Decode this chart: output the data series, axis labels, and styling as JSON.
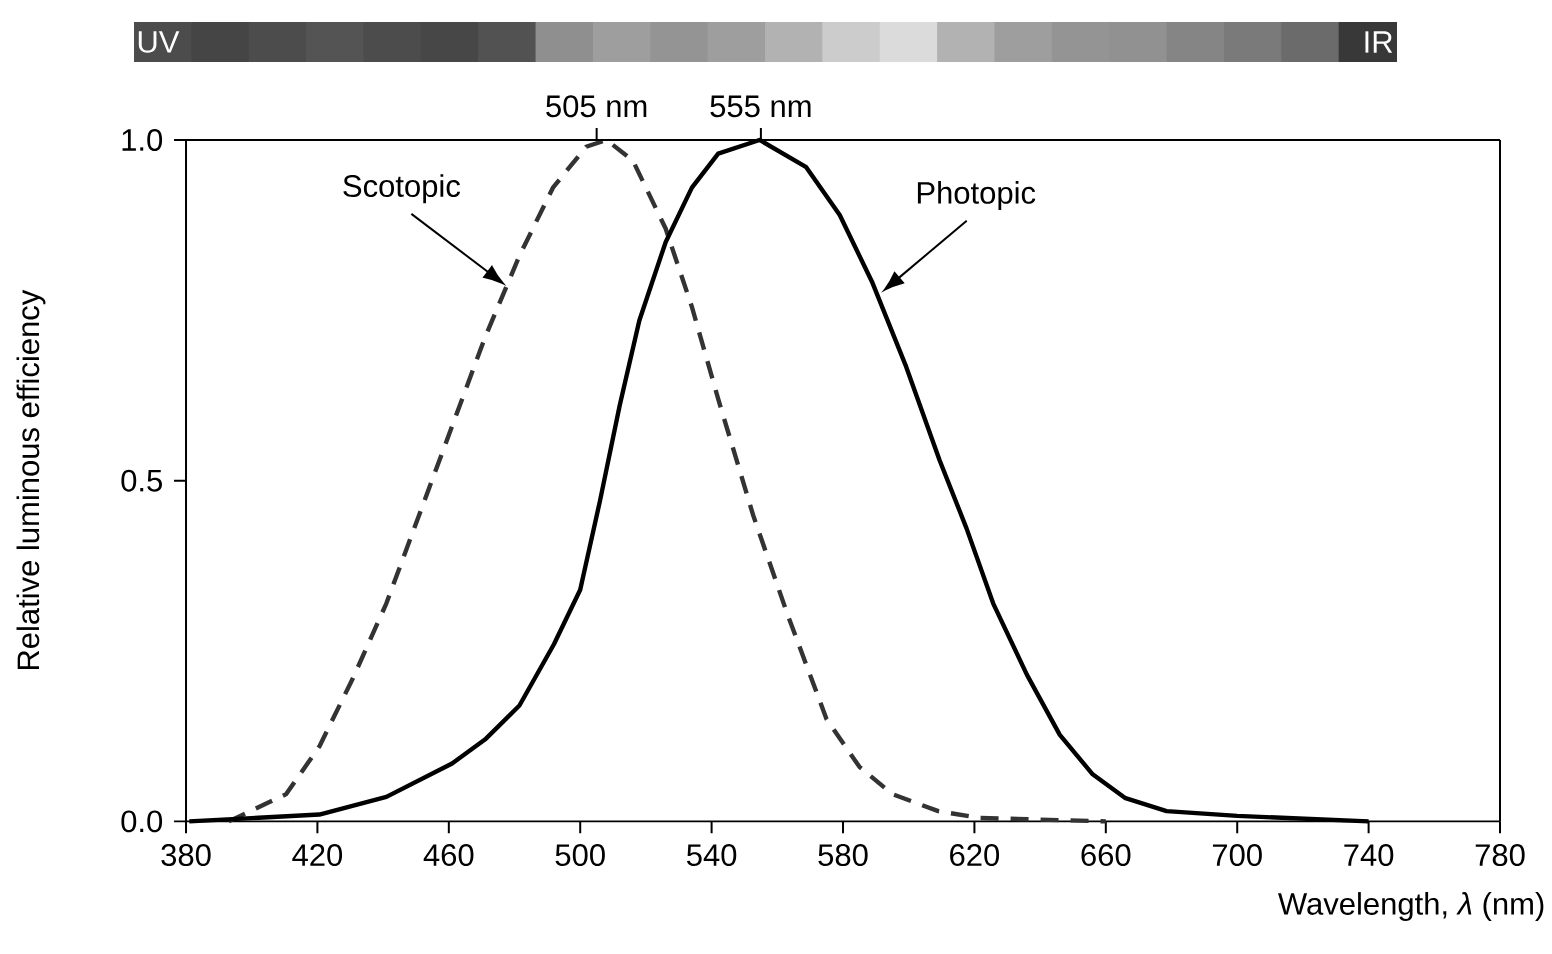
{
  "chart_data": {
    "type": "line",
    "xlabel": "Wavelength, *λ* (nm)",
    "ylabel": "Relative luminous efficiency",
    "xlim": [
      380,
      780
    ],
    "xticks": [
      380,
      420,
      460,
      500,
      540,
      580,
      620,
      660,
      700,
      740,
      780
    ],
    "ylim": [
      0,
      1
    ],
    "yticks": [
      {
        "value": 0,
        "label": "0.0"
      },
      {
        "value": 0.5,
        "label": "0.5"
      },
      {
        "value": 1,
        "label": "1.0"
      }
    ],
    "x2lim": [
      380,
      780
    ],
    "x2ticks": [
      {
        "value": 505,
        "label": "505 nm"
      },
      {
        "value": 555,
        "label": "555 nm"
      }
    ],
    "annotations": [
      "UV",
      "IR"
    ],
    "series": [
      {
        "name": "Scotopic",
        "color": "#333333",
        "line_style": "dashed",
        "x": [
          393,
          410.5,
          420.6,
          430.8,
          441,
          451,
          461,
          471,
          481.5,
          491.7,
          501.8,
          508,
          516,
          526,
          534,
          542,
          552.6,
          563,
          575,
          585,
          595,
          609,
          621.6,
          660
        ],
        "values": [
          0,
          0.04,
          0.11,
          0.21,
          0.32,
          0.45,
          0.58,
          0.71,
          0.83,
          0.93,
          0.99,
          1.0,
          0.97,
          0.87,
          0.755,
          0.62,
          0.45,
          0.305,
          0.15,
          0.08,
          0.04,
          0.015,
          0.005,
          0
        ]
      },
      {
        "name": "Photopic",
        "color": "#000000",
        "line_style": "solid",
        "x": [
          381,
          420.6,
          441,
          461,
          471,
          481.5,
          492,
          500,
          506,
          512,
          518,
          526,
          534,
          542,
          554.6,
          568.8,
          579,
          589,
          599,
          609.4,
          617.6,
          625.7,
          636,
          646,
          656,
          666,
          678.5,
          700,
          740
        ],
        "values": [
          0,
          0.01,
          0.036,
          0.085,
          0.12,
          0.17,
          0.26,
          0.34,
          0.47,
          0.61,
          0.735,
          0.85,
          0.93,
          0.98,
          1.0,
          0.96,
          0.89,
          0.79,
          0.67,
          0.53,
          0.43,
          0.32,
          0.215,
          0.127,
          0.069,
          0.034,
          0.015,
          0.008,
          0
        ]
      }
    ]
  }
}
